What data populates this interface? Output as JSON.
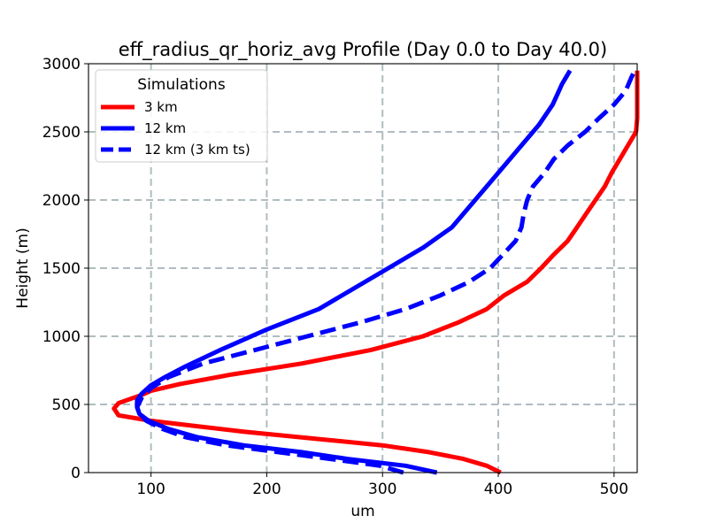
{
  "chart_data": {
    "type": "line",
    "title": "eff_radius_qr_horiz_avg Profile (Day 0.0 to Day 40.0)",
    "xlabel": "um",
    "ylabel": "Height (m)",
    "xlim": [
      46,
      520
    ],
    "ylim": [
      0,
      3000
    ],
    "xticks": [
      100,
      200,
      300,
      400,
      500
    ],
    "yticks": [
      0,
      500,
      1000,
      1500,
      2000,
      2500,
      3000
    ],
    "grid": true,
    "legend": {
      "title": "Simulations",
      "position": "top-left"
    },
    "series": [
      {
        "name": "3 km",
        "color": "#ff0000",
        "dash": "solid",
        "points": [
          [
            402,
            0
          ],
          [
            390,
            50
          ],
          [
            370,
            100
          ],
          [
            340,
            150
          ],
          [
            300,
            200
          ],
          [
            240,
            250
          ],
          [
            180,
            300
          ],
          [
            130,
            350
          ],
          [
            100,
            380
          ],
          [
            72,
            420
          ],
          [
            68,
            470
          ],
          [
            72,
            510
          ],
          [
            82,
            540
          ],
          [
            92,
            570
          ],
          [
            100,
            600
          ],
          [
            125,
            650
          ],
          [
            170,
            720
          ],
          [
            230,
            800
          ],
          [
            290,
            900
          ],
          [
            335,
            1000
          ],
          [
            365,
            1100
          ],
          [
            390,
            1200
          ],
          [
            405,
            1300
          ],
          [
            425,
            1400
          ],
          [
            437,
            1500
          ],
          [
            448,
            1600
          ],
          [
            460,
            1700
          ],
          [
            468,
            1800
          ],
          [
            476,
            1900
          ],
          [
            484,
            2000
          ],
          [
            492,
            2100
          ],
          [
            498,
            2200
          ],
          [
            505,
            2300
          ],
          [
            512,
            2400
          ],
          [
            519,
            2500
          ],
          [
            520,
            2600
          ],
          [
            520,
            2700
          ],
          [
            520,
            2800
          ],
          [
            520,
            2900
          ],
          [
            520,
            2950
          ]
        ]
      },
      {
        "name": "12 km",
        "color": "#0000ff",
        "dash": "solid",
        "points": [
          [
            347,
            0
          ],
          [
            320,
            50
          ],
          [
            270,
            100
          ],
          [
            230,
            150
          ],
          [
            180,
            200
          ],
          [
            140,
            260
          ],
          [
            115,
            320
          ],
          [
            98,
            380
          ],
          [
            90,
            430
          ],
          [
            88,
            480
          ],
          [
            88,
            530
          ],
          [
            92,
            580
          ],
          [
            100,
            640
          ],
          [
            112,
            700
          ],
          [
            130,
            780
          ],
          [
            160,
            900
          ],
          [
            200,
            1050
          ],
          [
            245,
            1200
          ],
          [
            275,
            1350
          ],
          [
            305,
            1500
          ],
          [
            335,
            1650
          ],
          [
            360,
            1800
          ],
          [
            375,
            1950
          ],
          [
            390,
            2100
          ],
          [
            405,
            2250
          ],
          [
            420,
            2400
          ],
          [
            435,
            2550
          ],
          [
            447,
            2700
          ],
          [
            455,
            2850
          ],
          [
            462,
            2950
          ]
        ]
      },
      {
        "name": "12 km (3 km ts)",
        "color": "#0000ff",
        "dash": "dashed",
        "points": [
          [
            318,
            0
          ],
          [
            298,
            50
          ],
          [
            255,
            100
          ],
          [
            210,
            150
          ],
          [
            165,
            200
          ],
          [
            130,
            260
          ],
          [
            110,
            320
          ],
          [
            96,
            380
          ],
          [
            90,
            430
          ],
          [
            88,
            480
          ],
          [
            92,
            550
          ],
          [
            100,
            620
          ],
          [
            115,
            700
          ],
          [
            145,
            800
          ],
          [
            190,
            900
          ],
          [
            235,
            1000
          ],
          [
            280,
            1100
          ],
          [
            320,
            1200
          ],
          [
            350,
            1300
          ],
          [
            375,
            1400
          ],
          [
            393,
            1500
          ],
          [
            404,
            1600
          ],
          [
            415,
            1700
          ],
          [
            420,
            1800
          ],
          [
            422,
            1900
          ],
          [
            425,
            2000
          ],
          [
            430,
            2100
          ],
          [
            440,
            2200
          ],
          [
            448,
            2300
          ],
          [
            460,
            2400
          ],
          [
            475,
            2500
          ],
          [
            487,
            2600
          ],
          [
            500,
            2700
          ],
          [
            510,
            2800
          ],
          [
            515,
            2900
          ],
          [
            518,
            2950
          ]
        ]
      }
    ]
  }
}
